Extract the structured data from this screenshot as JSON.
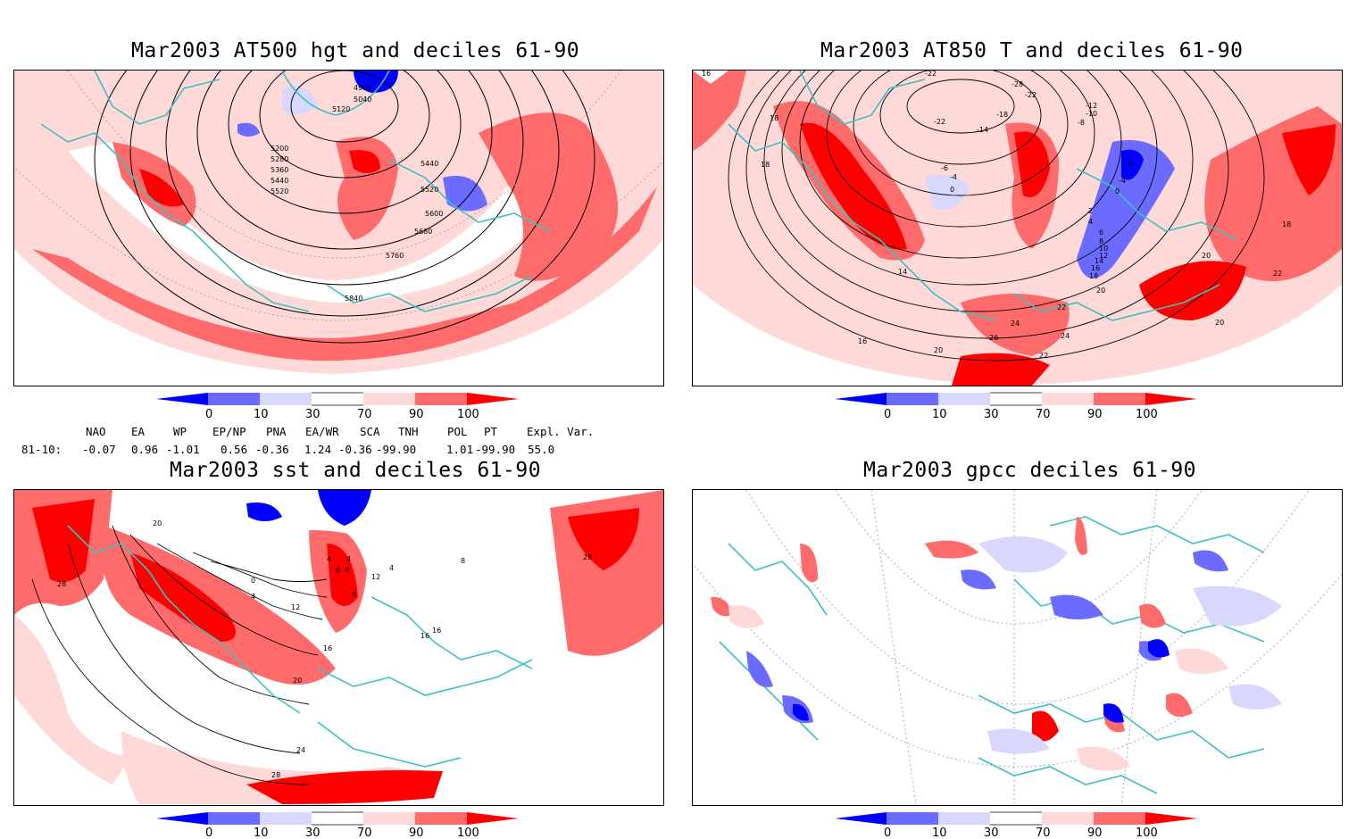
{
  "panels": [
    {
      "title": "Mar2003 AT500 hgt and deciles 61-90",
      "contour_labels": [
        "4960",
        "5040",
        "5120",
        "5200",
        "5280",
        "5360",
        "5440",
        "5520",
        "5440",
        "5520",
        "5600",
        "5680",
        "5760",
        "5840"
      ]
    },
    {
      "title": "Mar2003 AT850 T and deciles 61-90",
      "contour_labels": [
        "16",
        "-22",
        "-28",
        "-22",
        "-12",
        "-10",
        "-8",
        "-22",
        "-18",
        "-14",
        "-6",
        "-4",
        "0",
        "-6",
        "-4",
        "0",
        "2",
        "4",
        "6",
        "8",
        "10",
        "12",
        "14",
        "16",
        "18",
        "20",
        "22",
        "24",
        "26",
        "20",
        "22",
        "24",
        "20",
        "18",
        "18",
        "14",
        "16",
        "20",
        "22",
        "18"
      ]
    },
    {
      "title": "Mar2003 sst and deciles 61-90",
      "contour_labels": [
        "20",
        "28",
        "0",
        "4",
        "8",
        "12",
        "16",
        "20",
        "24",
        "28",
        "4",
        "4",
        "8",
        "8",
        "12",
        "16",
        "16",
        "28",
        "4",
        "8"
      ]
    },
    {
      "title": "Mar2003 gpcc deciles 61-90",
      "contour_labels": []
    }
  ],
  "colorbar": {
    "ticks": [
      "0",
      "10",
      "30",
      "70",
      "90",
      "100"
    ],
    "colors": [
      "#0000ff",
      "#6b6bff",
      "#d8d8ff",
      "#ffffff",
      "#ffd8d8",
      "#ff6b6b",
      "#ff0000"
    ]
  },
  "indices": {
    "headers": [
      "NAO",
      "EA",
      "WP",
      "EP/NP",
      "PNA",
      "EA/WR",
      "SCA",
      "TNH",
      "POL",
      "PT",
      "Expl. Var."
    ],
    "row_label": "81-10:",
    "values": [
      "-0.07",
      "0.96",
      "-1.01",
      "0.56",
      "-0.36",
      "1.24",
      "-0.36",
      "-99.90",
      "1.01",
      "-99.90",
      "55.0"
    ]
  }
}
